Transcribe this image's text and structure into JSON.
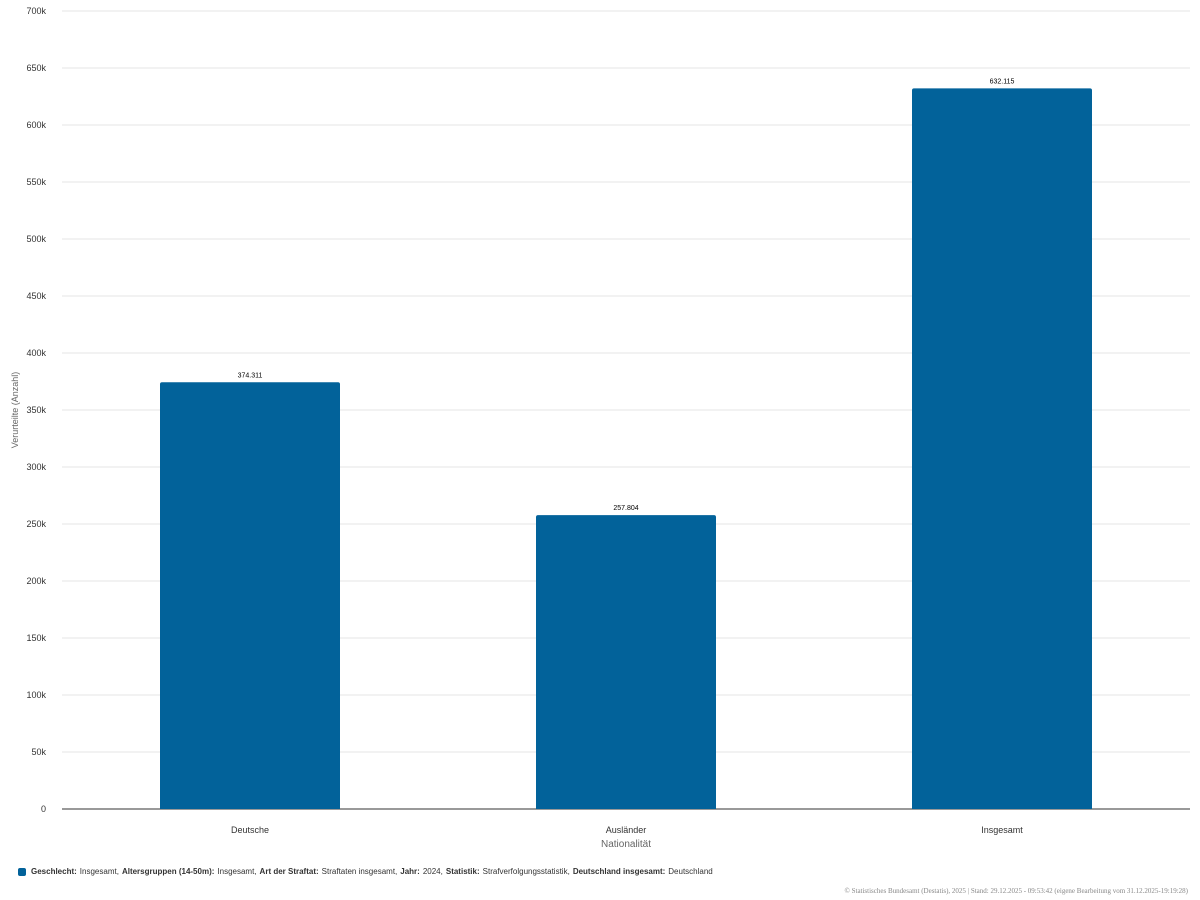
{
  "chart_data": {
    "type": "bar",
    "categories": [
      "Deutsche",
      "Ausländer",
      "Insgesamt"
    ],
    "values": [
      374311,
      257804,
      632115
    ],
    "value_labels": [
      "374.311",
      "257.804",
      "632.115"
    ],
    "color": "#02629a",
    "ylabel": "Verurteilte (Anzahl)",
    "xlabel": "Nationalität",
    "ylim": [
      0,
      700000
    ],
    "yticks": [
      0,
      {
        "value": 50000,
        "label": "50k"
      },
      {
        "value": 100000,
        "label": "100k"
      },
      {
        "value": 150000,
        "label": "150k"
      },
      {
        "value": 200000,
        "label": "200k"
      },
      {
        "value": 250000,
        "label": "250k"
      },
      {
        "value": 300000,
        "label": "300k"
      },
      {
        "value": 350000,
        "label": "350k"
      },
      {
        "value": 400000,
        "label": "400k"
      },
      {
        "value": 450000,
        "label": "450k"
      },
      {
        "value": 500000,
        "label": "500k"
      },
      {
        "value": 550000,
        "label": "550k"
      },
      {
        "value": 600000,
        "label": "600k"
      },
      {
        "value": 650000,
        "label": "650k"
      },
      {
        "value": 700000,
        "label": "700k"
      }
    ],
    "grid": true,
    "filters": [
      {
        "key": "Geschlecht:",
        "value": "Insgesamt,"
      },
      {
        "key": "Altersgruppen (14-50m):",
        "value": "Insgesamt,"
      },
      {
        "key": "Art der Straftat:",
        "value": "Straftaten insgesamt,"
      },
      {
        "key": "Jahr:",
        "value": "2024,"
      },
      {
        "key": "Statistik:",
        "value": "Strafverfolgungsstatistik,"
      },
      {
        "key": "Deutschland insgesamt:",
        "value": "Deutschland"
      }
    ],
    "source": "© Statistisches Bundesamt (Destatis), 2025 | Stand: 29.12.2025 - 09:53:42 (eigene Bearbeitung vom 31.12.2025-19:19:28)"
  }
}
